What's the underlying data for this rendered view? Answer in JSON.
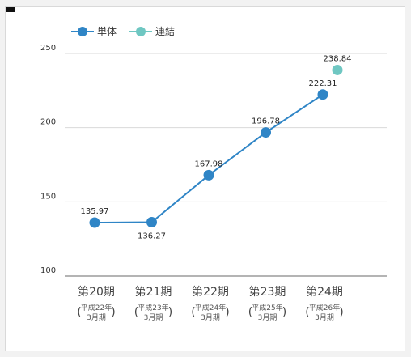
{
  "colors": {
    "series1": "#2f85c6",
    "series2": "#6fc7c2",
    "grid": "#d9d9d9",
    "axis": "#888888"
  },
  "legend": {
    "items": [
      {
        "label": "単体"
      },
      {
        "label": "連結"
      }
    ]
  },
  "chart_data": {
    "type": "line",
    "categories": [
      {
        "main": "第20期",
        "sub1": "平成22年",
        "sub2": "3月期"
      },
      {
        "main": "第21期",
        "sub1": "平成23年",
        "sub2": "3月期"
      },
      {
        "main": "第22期",
        "sub1": "平成24年",
        "sub2": "3月期"
      },
      {
        "main": "第23期",
        "sub1": "平成25年",
        "sub2": "3月期"
      },
      {
        "main": "第24期",
        "sub1": "平成26年",
        "sub2": "3月期"
      }
    ],
    "series": [
      {
        "name": "単体",
        "values": [
          135.97,
          136.27,
          167.98,
          196.78,
          222.31
        ],
        "labels": [
          "135.97",
          "136.27",
          "167.98",
          "196.78",
          "222.31"
        ]
      },
      {
        "name": "連結",
        "values": [
          null,
          null,
          null,
          null,
          238.84
        ],
        "labels": [
          "",
          "",
          "",
          "",
          "238.84"
        ]
      }
    ],
    "yticks": [
      {
        "value": 100,
        "label": "100"
      },
      {
        "value": 150,
        "label": "150"
      },
      {
        "value": 200,
        "label": "200"
      },
      {
        "value": 250,
        "label": "250"
      }
    ],
    "ylim": [
      100,
      250
    ],
    "grid": true,
    "legend_position": "top-left"
  }
}
